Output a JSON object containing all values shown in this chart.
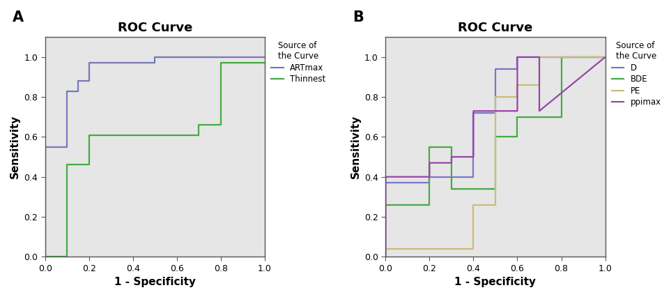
{
  "panel_A": {
    "title": "ROC Curve",
    "label": "A",
    "xlabel": "1 - Specificity",
    "ylabel": "Sensitivity",
    "legend_title": "Source of\nthe Curve",
    "xlim": [
      0.0,
      1.0
    ],
    "ylim": [
      0.0,
      1.1
    ],
    "xticks": [
      0.0,
      0.2,
      0.4,
      0.6,
      0.8,
      1.0
    ],
    "yticks": [
      0.0,
      0.2,
      0.4,
      0.6,
      0.8,
      1.0
    ],
    "curves": [
      {
        "label": "ARTmax",
        "color": "#7777bb",
        "x": [
          0.0,
          0.0,
          0.1,
          0.1,
          0.15,
          0.15,
          0.2,
          0.2,
          0.5,
          0.5,
          1.0
        ],
        "y": [
          0.0,
          0.55,
          0.55,
          0.83,
          0.83,
          0.88,
          0.88,
          0.97,
          0.97,
          1.0,
          1.0
        ]
      },
      {
        "label": "Thinnest",
        "color": "#44aa44",
        "x": [
          0.0,
          0.0,
          0.1,
          0.1,
          0.2,
          0.2,
          0.7,
          0.7,
          0.8,
          0.8,
          1.0
        ],
        "y": [
          0.0,
          0.0,
          0.0,
          0.46,
          0.46,
          0.61,
          0.61,
          0.66,
          0.66,
          0.97,
          0.97
        ]
      }
    ]
  },
  "panel_B": {
    "title": "ROC Curve",
    "label": "B",
    "xlabel": "1 - Specificity",
    "ylabel": "Sensitivity",
    "legend_title": "Source of\nthe Curve",
    "xlim": [
      0.0,
      1.0
    ],
    "ylim": [
      0.0,
      1.1
    ],
    "xticks": [
      0.0,
      0.2,
      0.4,
      0.6,
      0.8,
      1.0
    ],
    "yticks": [
      0.0,
      0.2,
      0.4,
      0.6,
      0.8,
      1.0
    ],
    "curves": [
      {
        "label": "D",
        "color": "#7777cc",
        "x": [
          0.0,
          0.0,
          0.2,
          0.2,
          0.4,
          0.4,
          0.5,
          0.5,
          0.6,
          0.6,
          1.0
        ],
        "y": [
          0.0,
          0.37,
          0.37,
          0.4,
          0.4,
          0.72,
          0.72,
          0.94,
          0.94,
          1.0,
          1.0
        ]
      },
      {
        "label": "BDE",
        "color": "#44aa44",
        "x": [
          0.0,
          0.0,
          0.2,
          0.2,
          0.3,
          0.3,
          0.5,
          0.5,
          0.6,
          0.6,
          0.8,
          0.8,
          1.0
        ],
        "y": [
          0.0,
          0.26,
          0.26,
          0.55,
          0.55,
          0.34,
          0.34,
          0.6,
          0.6,
          0.7,
          0.7,
          1.0,
          1.0
        ]
      },
      {
        "label": "PE",
        "color": "#ccbb77",
        "x": [
          0.0,
          0.0,
          0.4,
          0.4,
          0.5,
          0.5,
          0.6,
          0.6,
          0.7,
          0.7,
          1.0
        ],
        "y": [
          0.0,
          0.04,
          0.04,
          0.26,
          0.26,
          0.8,
          0.8,
          0.86,
          0.86,
          1.0,
          1.0
        ]
      },
      {
        "label": "ppimax",
        "color": "#9944aa",
        "x": [
          0.0,
          0.0,
          0.2,
          0.2,
          0.3,
          0.3,
          0.4,
          0.4,
          0.6,
          0.6,
          0.7,
          0.7,
          1.0
        ],
        "y": [
          0.0,
          0.4,
          0.4,
          0.47,
          0.47,
          0.5,
          0.5,
          0.73,
          0.73,
          1.0,
          1.0,
          0.73,
          1.0
        ]
      }
    ]
  },
  "bg_color": "#e6e6e6",
  "fig_bg": "#ffffff",
  "linewidth": 1.6
}
